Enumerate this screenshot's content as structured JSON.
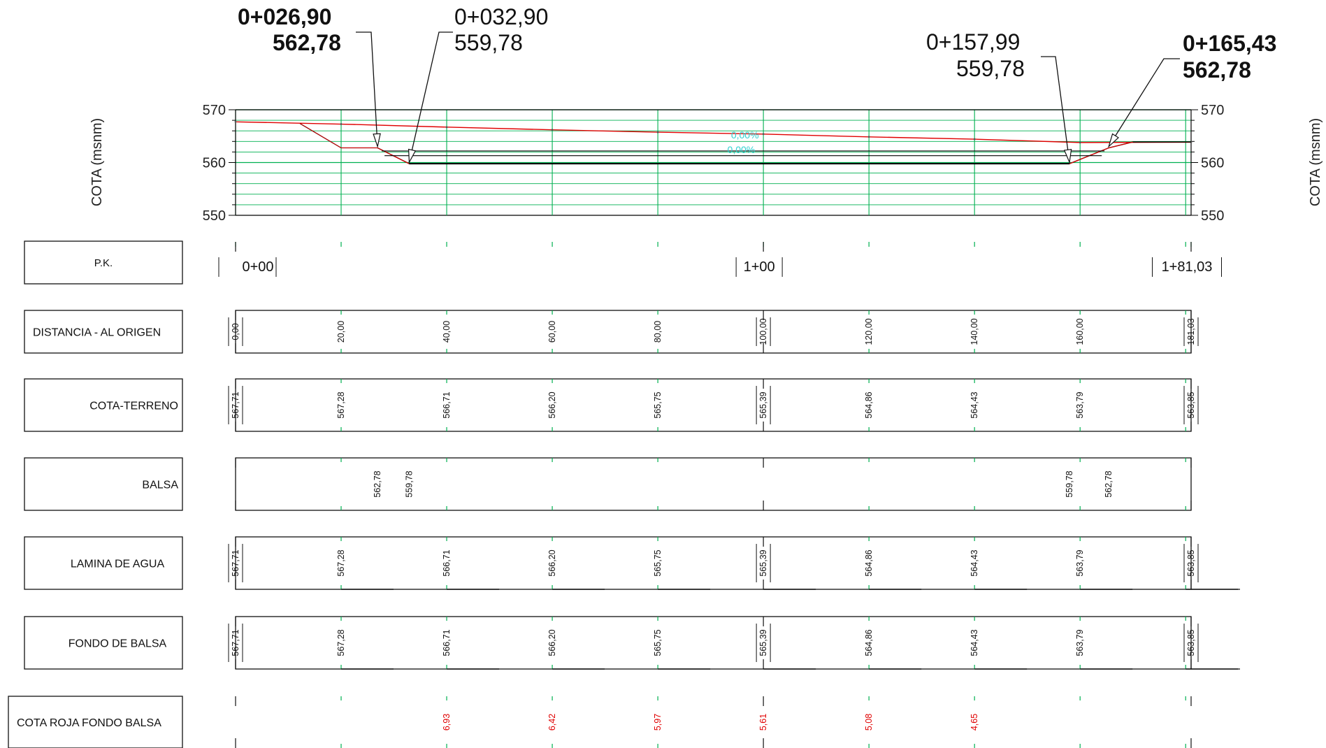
{
  "colors": {
    "grid": "#00b050",
    "terrain": "#e00000",
    "slope_text": "#30d0d0",
    "red_value": "#e00000",
    "line": "#000000"
  },
  "callouts": [
    {
      "pk": "0+026,90",
      "elev": "562,78",
      "bold": true
    },
    {
      "pk": "0+032,90",
      "elev": "559,78",
      "bold": false
    },
    {
      "pk": "0+157,99",
      "elev": "559,78",
      "bold": false
    },
    {
      "pk": "0+165,43",
      "elev": "562,78",
      "bold": true
    }
  ],
  "chart_data": {
    "type": "line",
    "ylabel": "COTA (msnm)",
    "ylim": [
      550,
      570
    ],
    "yticks": [
      "570",
      "560",
      "550"
    ],
    "xlim": [
      0,
      181.03
    ],
    "series": [
      {
        "name": "terreno",
        "x": [
          0,
          20,
          40,
          60,
          80,
          100,
          120,
          140,
          160,
          181.03
        ],
        "y": [
          567.71,
          567.28,
          566.71,
          566.2,
          565.75,
          565.39,
          564.86,
          564.43,
          563.79,
          563.85
        ]
      },
      {
        "name": "balsa",
        "x": [
          26.9,
          32.9,
          157.99,
          165.43
        ],
        "y": [
          562.78,
          559.78,
          559.78,
          562.78
        ]
      }
    ],
    "slopes": [
      "0,00%",
      "0,00%"
    ]
  },
  "guitar": {
    "pk_label": "P.K.",
    "pk_marks": [
      {
        "x": 0,
        "label": "0+00"
      },
      {
        "x": 100,
        "label": "1+00"
      },
      {
        "x": 181.03,
        "label": "1+81,03"
      }
    ],
    "rows": [
      {
        "label": "DISTANCIA - AL ORIGEN",
        "align": "left",
        "values": [
          {
            "x": 0,
            "v": "0,00"
          },
          {
            "x": 20,
            "v": "20,00"
          },
          {
            "x": 40,
            "v": "40,00"
          },
          {
            "x": 60,
            "v": "60,00"
          },
          {
            "x": 80,
            "v": "80,00"
          },
          {
            "x": 100,
            "v": "100,00"
          },
          {
            "x": 120,
            "v": "120,00"
          },
          {
            "x": 140,
            "v": "140,00"
          },
          {
            "x": 160,
            "v": "160,00"
          },
          {
            "x": 181.03,
            "v": "181,03"
          }
        ]
      },
      {
        "label": "COTA-TERRENO",
        "align": "right",
        "values": [
          {
            "x": 0,
            "v": "567,71"
          },
          {
            "x": 20,
            "v": "567,28"
          },
          {
            "x": 40,
            "v": "566,71"
          },
          {
            "x": 60,
            "v": "566,20"
          },
          {
            "x": 80,
            "v": "565,75"
          },
          {
            "x": 100,
            "v": "565,39"
          },
          {
            "x": 120,
            "v": "564,86"
          },
          {
            "x": 140,
            "v": "564,43"
          },
          {
            "x": 160,
            "v": "563,79"
          },
          {
            "x": 181.03,
            "v": "563,85"
          }
        ]
      },
      {
        "label": "BALSA",
        "align": "right",
        "values": [
          {
            "x": 26.9,
            "v": "562,78"
          },
          {
            "x": 32.9,
            "v": "559,78"
          },
          {
            "x": 157.99,
            "v": "559,78"
          },
          {
            "x": 165.43,
            "v": "562,78"
          }
        ]
      },
      {
        "label": "LAMINA DE AGUA",
        "align": "center",
        "values": [
          {
            "x": 0,
            "v": "567,71"
          },
          {
            "x": 20,
            "v": "567,28"
          },
          {
            "x": 40,
            "v": "566,71"
          },
          {
            "x": 60,
            "v": "566,20"
          },
          {
            "x": 80,
            "v": "565,75"
          },
          {
            "x": 100,
            "v": "565,39"
          },
          {
            "x": 120,
            "v": "564,86"
          },
          {
            "x": 140,
            "v": "564,43"
          },
          {
            "x": 160,
            "v": "563,79"
          },
          {
            "x": 181.03,
            "v": "563,85"
          }
        ]
      },
      {
        "label": "FONDO DE BALSA",
        "align": "center",
        "values": [
          {
            "x": 0,
            "v": "567,71"
          },
          {
            "x": 20,
            "v": "567,28"
          },
          {
            "x": 40,
            "v": "566,71"
          },
          {
            "x": 60,
            "v": "566,20"
          },
          {
            "x": 80,
            "v": "565,75"
          },
          {
            "x": 100,
            "v": "565,39"
          },
          {
            "x": 120,
            "v": "564,86"
          },
          {
            "x": 140,
            "v": "564,43"
          },
          {
            "x": 160,
            "v": "563,79"
          },
          {
            "x": 181.03,
            "v": "563,85"
          }
        ]
      },
      {
        "label": "COTA ROJA FONDO BALSA",
        "align": "left",
        "values": [
          {
            "x": 40,
            "v": "6,93"
          },
          {
            "x": 60,
            "v": "6,42"
          },
          {
            "x": 80,
            "v": "5,97"
          },
          {
            "x": 100,
            "v": "5,61"
          },
          {
            "x": 120,
            "v": "5,08"
          },
          {
            "x": 140,
            "v": "4,65"
          }
        ]
      }
    ]
  }
}
